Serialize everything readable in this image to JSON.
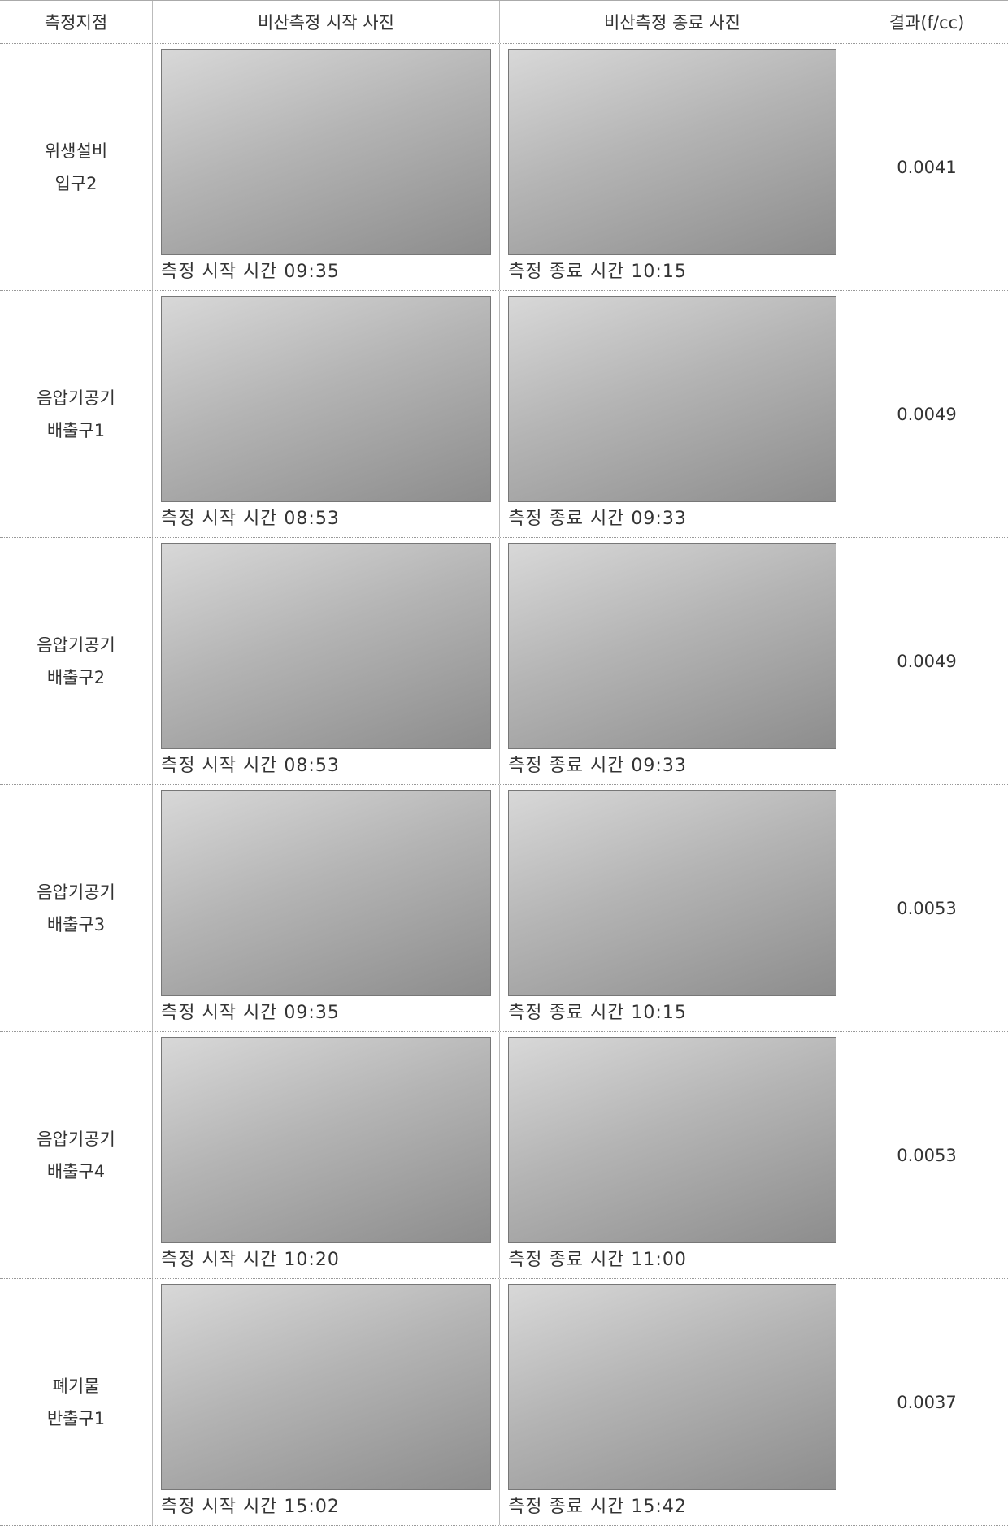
{
  "table": {
    "headers": [
      "측정지점",
      "비산측정 시작 사진",
      "비산측정 종료 사진",
      "결과(f/cc)"
    ],
    "rows": [
      {
        "location": [
          "위생설비",
          "입구2"
        ],
        "start_caption": "측정 시작 시간 09:35",
        "end_caption": "측정 종료 시간 10:15",
        "result": "0.0041"
      },
      {
        "location": [
          "음압기공기",
          "배출구1"
        ],
        "start_caption": "측정 시작 시간 08:53",
        "end_caption": "측정 종료 시간 09:33",
        "result": "0.0049"
      },
      {
        "location": [
          "음압기공기",
          "배출구2"
        ],
        "start_caption": "측정 시작 시간 08:53",
        "end_caption": "측정 종료 시간 09:33",
        "result": "0.0049"
      },
      {
        "location": [
          "음압기공기",
          "배출구3"
        ],
        "start_caption": "측정 시작 시간 09:35",
        "end_caption": "측정 종료 시간 10:15",
        "result": "0.0053"
      },
      {
        "location": [
          "음압기공기",
          "배출구4"
        ],
        "start_caption": "측정 시작 시간 10:20",
        "end_caption": "측정 종료 시간 11:00",
        "result": "0.0053"
      },
      {
        "location": [
          "폐기물",
          "반출구1"
        ],
        "start_caption": "측정 시작 시간 15:02",
        "end_caption": "측정 종료 시간 15:42",
        "result": "0.0037"
      }
    ]
  }
}
